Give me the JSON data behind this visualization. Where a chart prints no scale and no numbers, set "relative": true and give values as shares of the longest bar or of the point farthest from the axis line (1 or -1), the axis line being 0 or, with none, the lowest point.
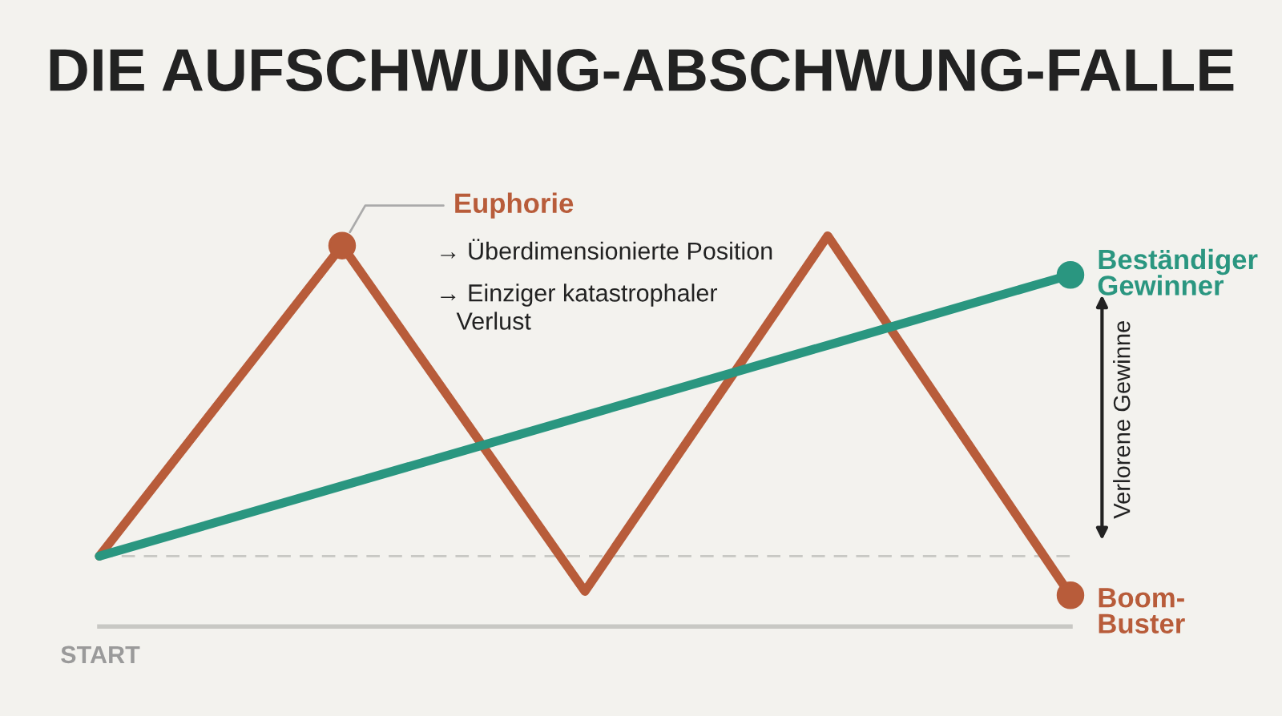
{
  "chart_data": {
    "type": "line",
    "title": "DIE AUFSCHWUNG-ABSCHWUNG-FALLE",
    "relative": true,
    "categories": [
      null,
      null,
      null,
      null,
      null
    ],
    "series": [
      {
        "name": "Boom-Buster",
        "color": "#b85c3a",
        "values": [
          0.18,
          0.975,
          0.09,
          1.0,
          0.08
        ]
      },
      {
        "name": "Beständiger Gewinner",
        "color": "#2a9680",
        "values": [
          0.18,
          0.36,
          0.54,
          0.72,
          0.9
        ]
      }
    ],
    "ref_lines": [
      {
        "axis": "y",
        "value": 0.18,
        "color": "#c8c8c4",
        "line_style": "dashed"
      }
    ],
    "annotations": [
      "Euphorie",
      "→ Überdimensionierte Position",
      "→ Einziger katastrophaler Verlust",
      "Verlorene Gewinne",
      "START"
    ],
    "legend": false
  }
}
